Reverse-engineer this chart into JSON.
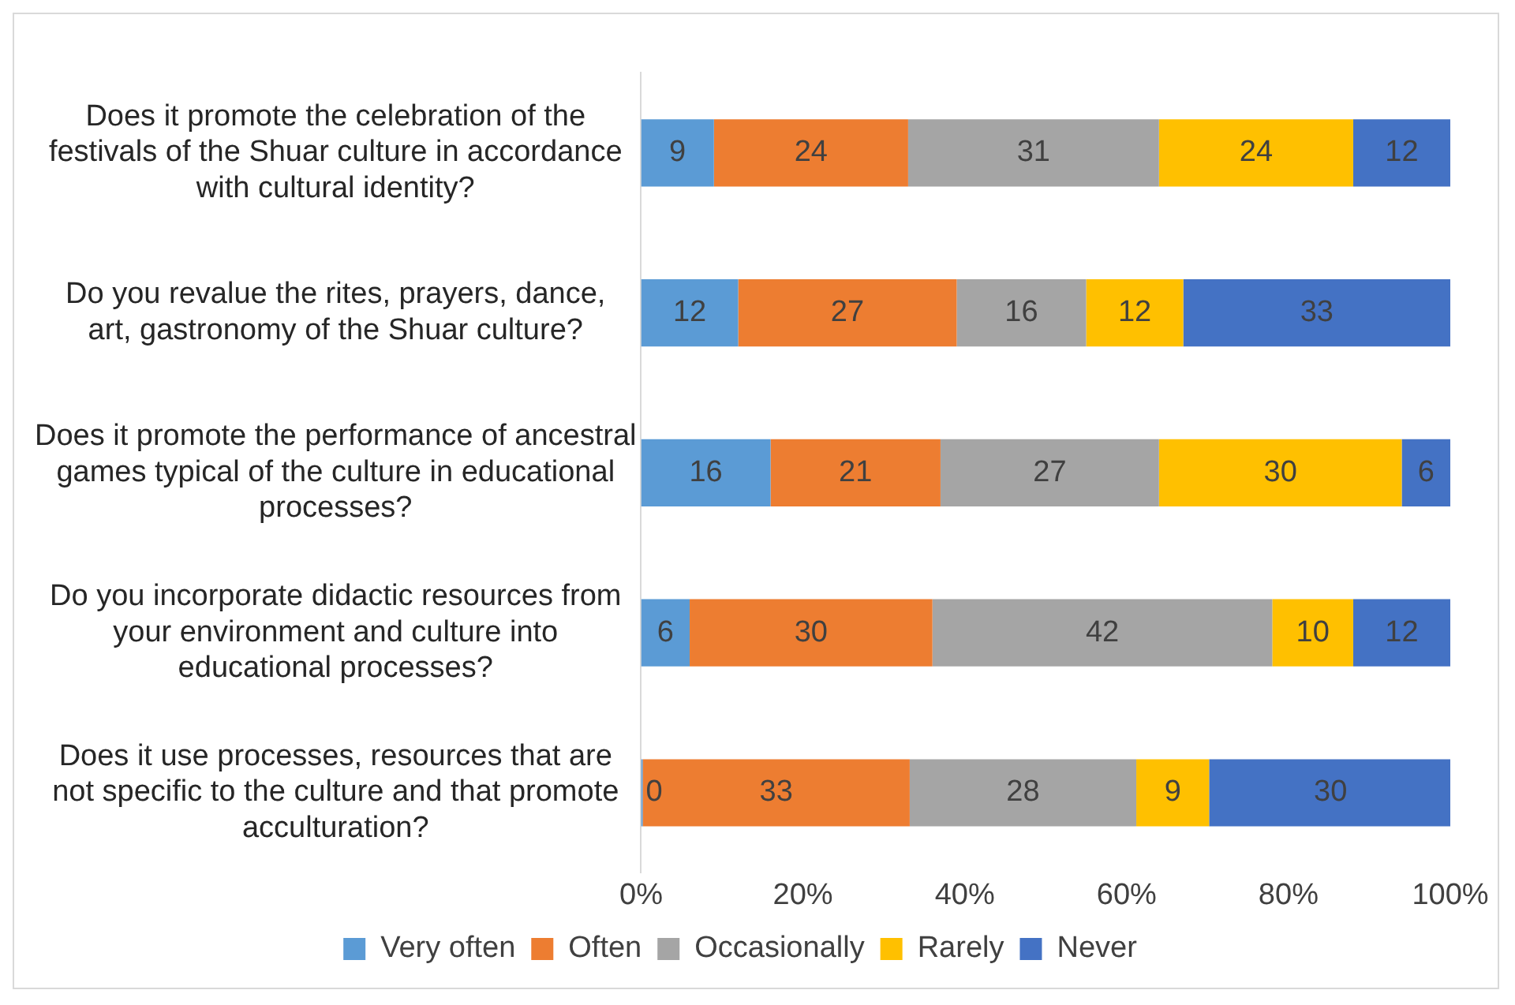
{
  "chart_data": {
    "type": "bar",
    "orientation": "horizontal",
    "stacked": true,
    "categories": [
      "Does it promote the celebration of the festivals of the Shuar culture in accordance with cultural identity?",
      "Do you revalue the rites, prayers, dance, art, gastronomy of the Shuar culture?",
      "Does it promote the performance of ancestral games typical of the culture in educational processes?",
      "Do you incorporate didactic resources from your environment and culture into educational processes?",
      "Does it use processes, resources that are not specific to the culture and that promote acculturation?"
    ],
    "series": [
      {
        "name": "Very often",
        "color": "#5b9bd5",
        "values": [
          9,
          12,
          16,
          6,
          0
        ]
      },
      {
        "name": "Often",
        "color": "#ed7d31",
        "values": [
          24,
          27,
          21,
          30,
          33
        ]
      },
      {
        "name": "Occasionally",
        "color": "#a5a5a5",
        "values": [
          31,
          16,
          27,
          42,
          28
        ]
      },
      {
        "name": "Rarely",
        "color": "#ffc000",
        "values": [
          24,
          12,
          30,
          10,
          9
        ]
      },
      {
        "name": "Never",
        "color": "#4472c4",
        "values": [
          12,
          33,
          6,
          12,
          30
        ]
      }
    ],
    "xlim": [
      0,
      100
    ],
    "xticks": [
      {
        "value": 0,
        "label": "0%"
      },
      {
        "value": 20,
        "label": "20%"
      },
      {
        "value": 40,
        "label": "40%"
      },
      {
        "value": 60,
        "label": "60%"
      },
      {
        "value": 80,
        "label": "80%"
      },
      {
        "value": 100,
        "label": "100%"
      }
    ],
    "grid": false,
    "legend": "bottom",
    "data_labels": true
  }
}
